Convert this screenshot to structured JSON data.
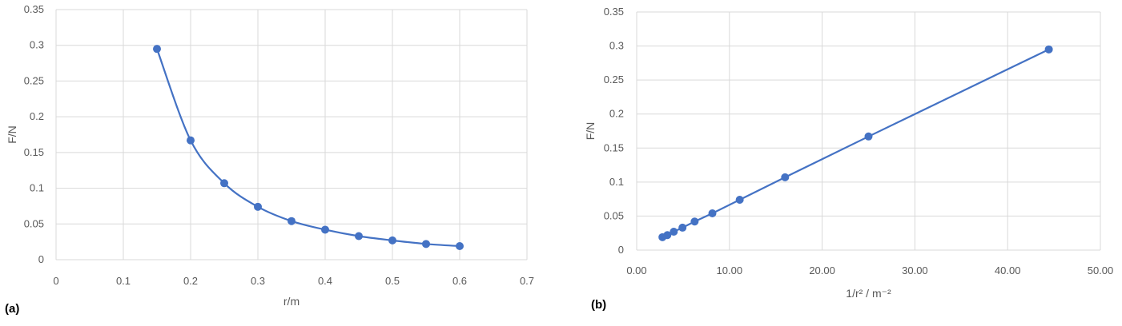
{
  "chart_data": [
    {
      "type": "line",
      "panel_label": "(a)",
      "xlabel": "r/m",
      "ylabel": "F/N",
      "xlim": [
        0,
        0.7
      ],
      "ylim": [
        0,
        0.35
      ],
      "x_ticks": [
        "0",
        "0.1",
        "0.2",
        "0.3",
        "0.4",
        "0.5",
        "0.6",
        "0.7"
      ],
      "y_ticks": [
        "0",
        "0.05",
        "0.1",
        "0.15",
        "0.2",
        "0.25",
        "0.3",
        "0.35"
      ],
      "grid": true,
      "markers": true,
      "color": "#4472C4",
      "series": [
        {
          "x": [
            0.15,
            0.2,
            0.25,
            0.3,
            0.35,
            0.4,
            0.45,
            0.5,
            0.55,
            0.6
          ],
          "values": [
            0.295,
            0.167,
            0.107,
            0.074,
            0.054,
            0.042,
            0.033,
            0.027,
            0.022,
            0.019
          ]
        }
      ]
    },
    {
      "type": "line",
      "panel_label": "(b)",
      "xlabel": "1/r² / m⁻²",
      "ylabel": "F/N",
      "xlim": [
        0,
        50
      ],
      "ylim": [
        0,
        0.35
      ],
      "x_ticks": [
        "0.00",
        "10.00",
        "20.00",
        "30.00",
        "40.00",
        "50.00"
      ],
      "y_ticks": [
        "0",
        "0.05",
        "0.1",
        "0.15",
        "0.2",
        "0.25",
        "0.3",
        "0.35"
      ],
      "grid": true,
      "markers": true,
      "color": "#4472C4",
      "series": [
        {
          "x": [
            2.78,
            3.31,
            4.0,
            4.94,
            6.25,
            8.16,
            11.11,
            16.0,
            25.0,
            44.44
          ],
          "values": [
            0.019,
            0.022,
            0.027,
            0.033,
            0.042,
            0.054,
            0.074,
            0.107,
            0.167,
            0.295
          ]
        }
      ]
    }
  ]
}
